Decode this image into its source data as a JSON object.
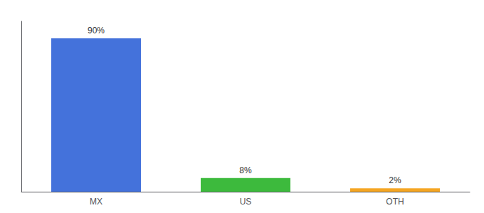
{
  "chart_data": {
    "type": "bar",
    "categories": [
      "MX",
      "US",
      "OTH"
    ],
    "values": [
      90,
      8,
      2
    ],
    "value_labels": [
      "90%",
      "8%",
      "2%"
    ],
    "colors": [
      "#4472db",
      "#3dba3d",
      "#f5a623"
    ],
    "ylim": [
      0,
      100
    ],
    "yticks": [],
    "grid": false,
    "tick_labels": "x",
    "data_labels": true
  }
}
